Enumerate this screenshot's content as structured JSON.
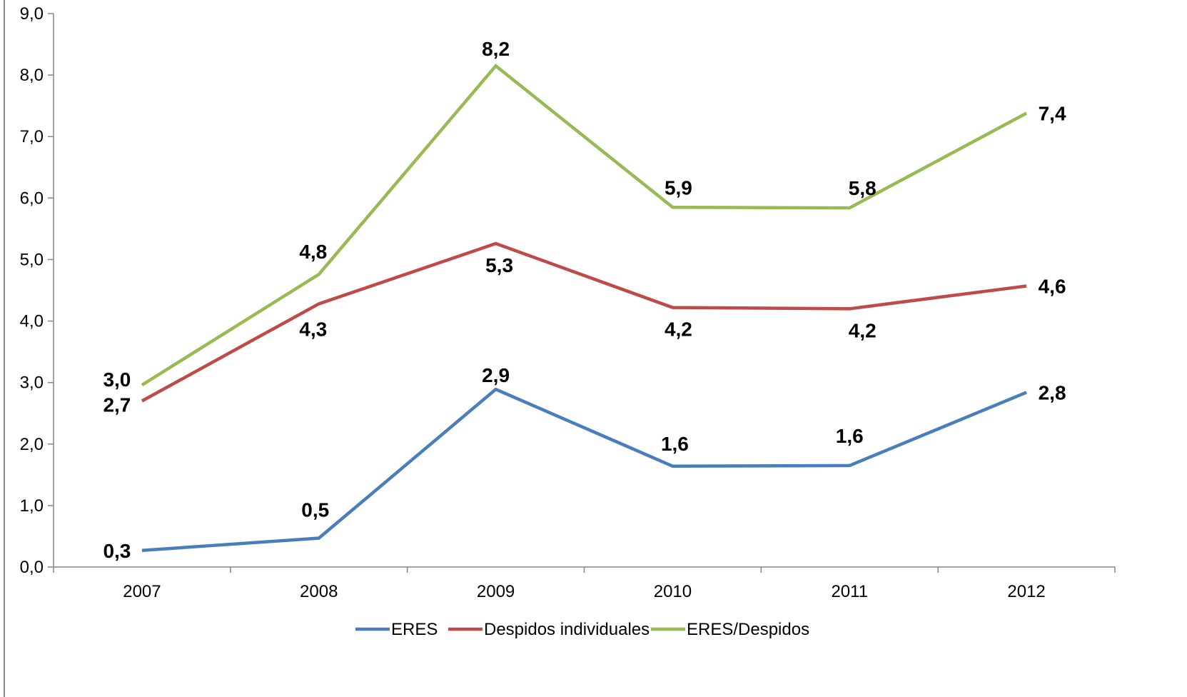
{
  "chart_data": {
    "type": "line",
    "title": "",
    "xlabel": "",
    "ylabel": "",
    "categories": [
      "2007",
      "2008",
      "2009",
      "2010",
      "2011",
      "2012"
    ],
    "ylim": [
      0,
      9
    ],
    "yticks": [
      0,
      1,
      2,
      3,
      4,
      5,
      6,
      7,
      8,
      9
    ],
    "ytick_labels": [
      "0,0",
      "1,0",
      "2,0",
      "3,0",
      "4,0",
      "5,0",
      "6,0",
      "7,0",
      "8,0",
      "9,0"
    ],
    "grid": false,
    "legend_position": "bottom",
    "series": [
      {
        "name": "ERES",
        "color": "#4a7ebb",
        "values": [
          0.27,
          0.47,
          2.89,
          1.64,
          1.65,
          2.84
        ],
        "labels": [
          "0,3",
          "0,5",
          "2,9",
          "1,6",
          "1,6",
          "2,8"
        ]
      },
      {
        "name": "Despidos individuales",
        "color": "#be4b48",
        "values": [
          2.7,
          4.28,
          5.26,
          4.22,
          4.2,
          4.57
        ],
        "labels": [
          "2,7",
          "4,3",
          "5,3",
          "4,2",
          "4,2",
          "4,6"
        ]
      },
      {
        "name": "ERES/Despidos",
        "color": "#98b954",
        "values": [
          2.96,
          4.76,
          8.15,
          5.85,
          5.84,
          7.38
        ],
        "labels": [
          "3,0",
          "4,8",
          "8,2",
          "5,9",
          "5,8",
          "7,4"
        ]
      }
    ]
  }
}
